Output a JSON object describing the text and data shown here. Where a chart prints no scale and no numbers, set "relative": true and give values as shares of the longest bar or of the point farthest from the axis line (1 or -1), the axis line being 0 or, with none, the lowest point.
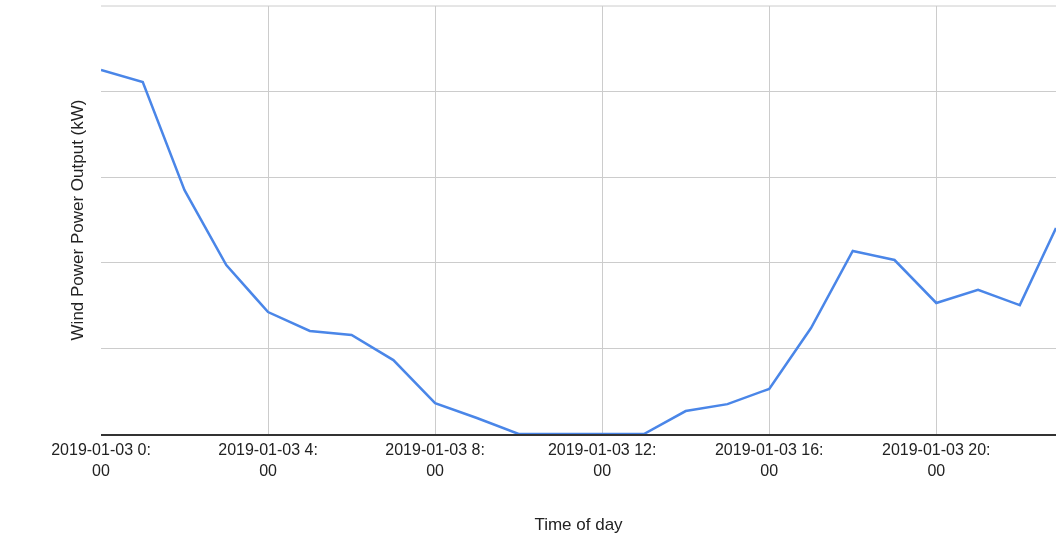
{
  "chart_data": {
    "type": "line",
    "relative": true,
    "xlabel": "Time of day",
    "ylabel": "Wind Power Power Output (kW)",
    "x": [
      "2019-01-03T00:00",
      "2019-01-03T01:00",
      "2019-01-03T02:00",
      "2019-01-03T03:00",
      "2019-01-03T04:00",
      "2019-01-03T05:00",
      "2019-01-03T06:00",
      "2019-01-03T07:00",
      "2019-01-03T08:00",
      "2019-01-03T09:00",
      "2019-01-03T10:00",
      "2019-01-03T11:00",
      "2019-01-03T12:00",
      "2019-01-03T13:00",
      "2019-01-03T14:00",
      "2019-01-03T15:00",
      "2019-01-03T16:00",
      "2019-01-03T17:00",
      "2019-01-03T18:00",
      "2019-01-03T19:00",
      "2019-01-03T20:00",
      "2019-01-03T21:00",
      "2019-01-03T22:00",
      "2019-01-03T22:52"
    ],
    "series": [
      {
        "color": "#4a86e8",
        "values": [
          1,
          0.967,
          0.67,
          0.464,
          0.335,
          0.283,
          0.272,
          0.203,
          0.085,
          0.044,
          0,
          0,
          0,
          0,
          0.063,
          0.082,
          0.124,
          0.291,
          0.503,
          0.478,
          0.36,
          0.396,
          0.354,
          0.566
        ]
      }
    ],
    "xlim": [
      "2019-01-03T00:00",
      "2019-01-03T22:52"
    ],
    "xticks": [
      {
        "value": "2019-01-03T00:00",
        "label": "2019-01-03 0:00"
      },
      {
        "value": "2019-01-03T04:00",
        "label": "2019-01-03 4:00"
      },
      {
        "value": "2019-01-03T08:00",
        "label": "2019-01-03 8:00"
      },
      {
        "value": "2019-01-03T12:00",
        "label": "2019-01-03 12:00"
      },
      {
        "value": "2019-01-03T16:00",
        "label": "2019-01-03 16:00"
      },
      {
        "value": "2019-01-03T20:00",
        "label": "2019-01-03 20:00"
      }
    ],
    "grid": true,
    "marker": "none",
    "line_style": "solid"
  }
}
